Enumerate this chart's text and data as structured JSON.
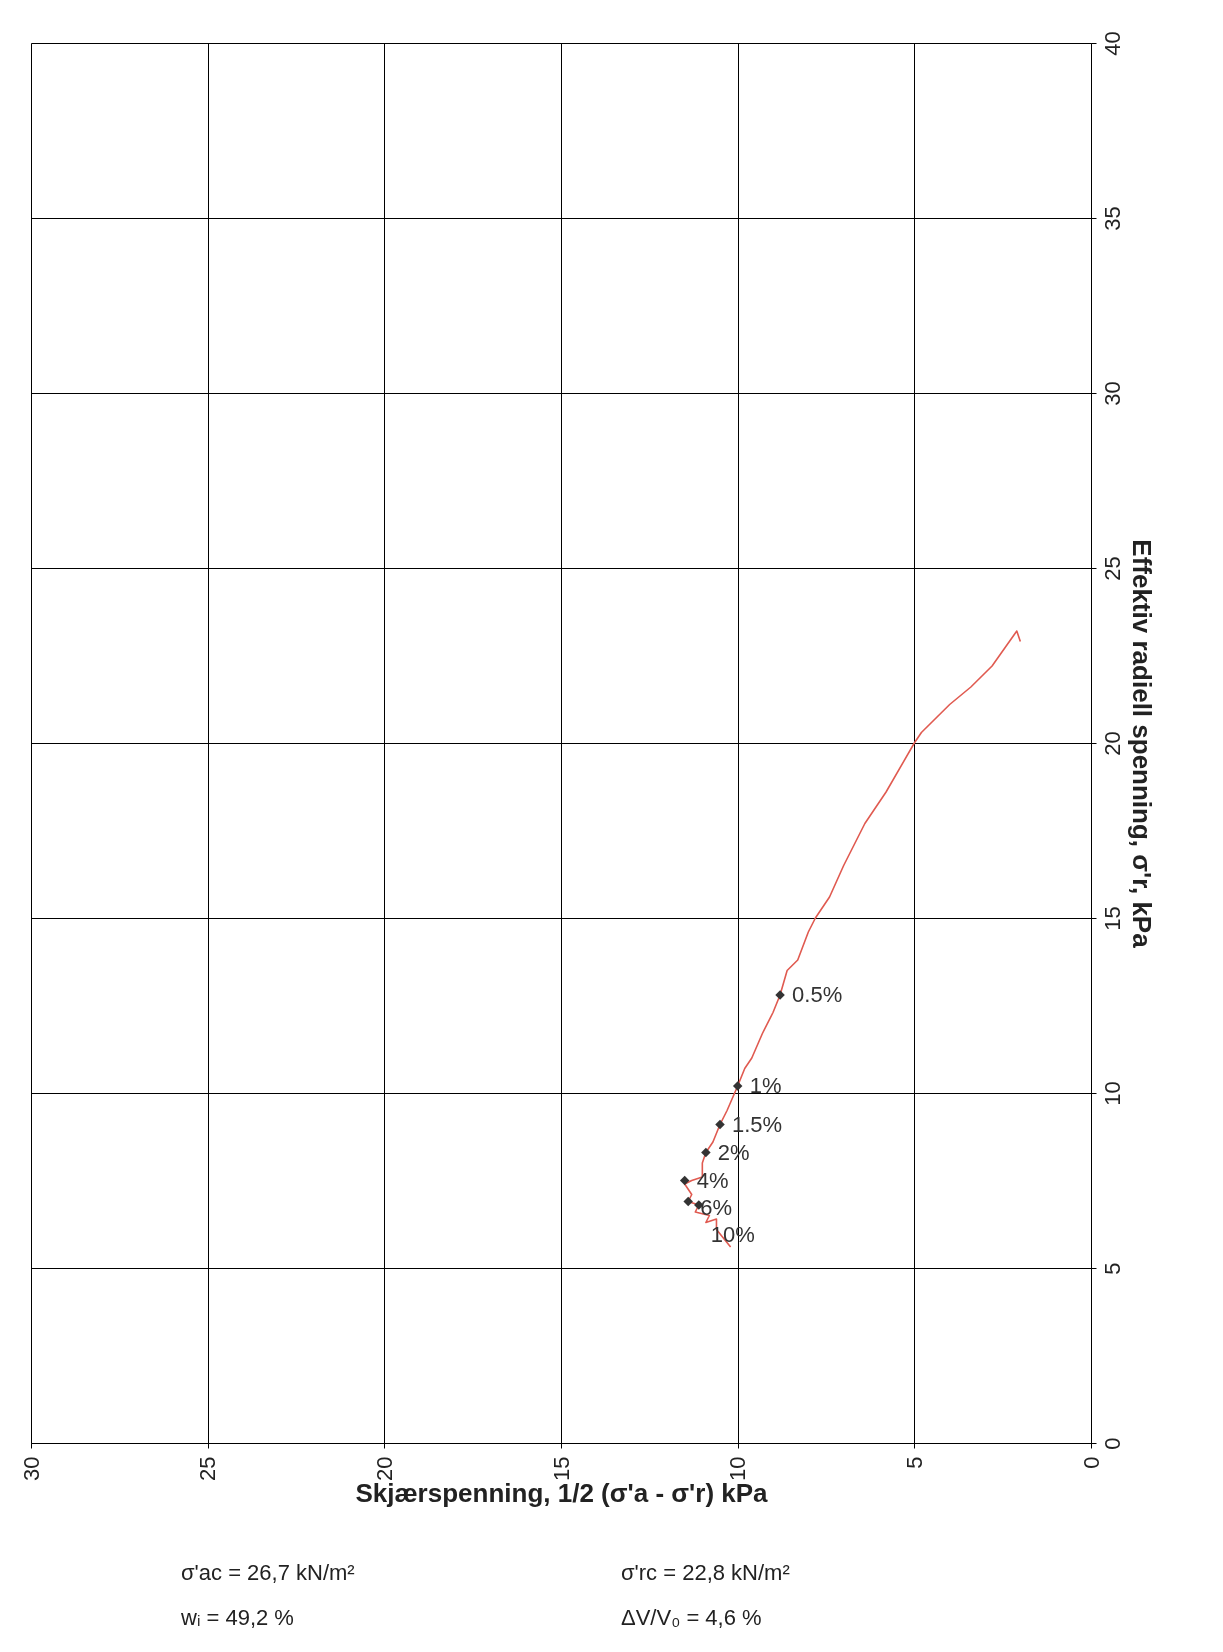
{
  "chart_data": {
    "type": "line",
    "xlabel": "Skjærspenning, 1/2 (σ'a - σ'r) kPa",
    "ylabel": "Effektiv radiell spenning, σ'r, kPa",
    "xlim": [
      30,
      0
    ],
    "xticks": [
      30,
      25,
      20,
      15,
      10,
      5,
      0
    ],
    "ylim": [
      0,
      40
    ],
    "yticks": [
      0,
      5,
      10,
      15,
      20,
      25,
      30,
      35,
      40
    ],
    "grid": true,
    "line_style": "solid",
    "series": [
      {
        "color": "#e05a50",
        "x": [
          2.0,
          2.1,
          2.8,
          3.4,
          4.0,
          4.8,
          5.0,
          5.8,
          6.4,
          7.0,
          7.4,
          7.8,
          8.0,
          8.3,
          8.6,
          8.8,
          9.0,
          9.3,
          9.6,
          9.8,
          10.0,
          10.3,
          10.5,
          10.7,
          10.9,
          11.0,
          11.0,
          11.3,
          11.5,
          11.3,
          11.4,
          11.1,
          11.2,
          10.8,
          10.9,
          10.6,
          10.6,
          10.2
        ],
        "values": [
          22.9,
          23.2,
          22.2,
          21.6,
          21.1,
          20.3,
          20.0,
          18.6,
          17.7,
          16.5,
          15.6,
          15.0,
          14.6,
          13.8,
          13.5,
          12.8,
          12.3,
          11.7,
          11.0,
          10.7,
          10.2,
          9.5,
          9.1,
          8.6,
          8.3,
          8.0,
          7.6,
          7.5,
          7.4,
          7.1,
          6.9,
          6.8,
          6.6,
          6.5,
          6.3,
          6.4,
          6.1,
          5.6
        ]
      },
      {
        "type": "scatter",
        "marker": "diamond",
        "color": "#333333",
        "x": [
          8.8,
          10.0,
          10.5,
          10.9,
          11.5,
          11.4,
          11.1
        ],
        "values": [
          12.8,
          10.2,
          9.1,
          8.3,
          7.5,
          6.9,
          6.8
        ]
      }
    ],
    "annotations": [
      {
        "text": "0.5%",
        "x": 8.8,
        "y": 12.8
      },
      {
        "text": "1%",
        "x": 10.0,
        "y": 10.2
      },
      {
        "text": "1.5%",
        "x": 10.5,
        "y": 9.1
      },
      {
        "text": "2%",
        "x": 10.9,
        "y": 8.3
      },
      {
        "text": "4%",
        "x": 11.5,
        "y": 7.5
      },
      {
        "text": "6%",
        "x": 11.4,
        "y": 6.9
      },
      {
        "text": "10%",
        "x": 11.1,
        "y": 6.8
      },
      "σ'ac = 26,7  kN/m²",
      "σ'rc = 22,8  kN/m²",
      "wᵢ = 49,2  %",
      "ΔV/V₀ = 4,6  %"
    ]
  }
}
